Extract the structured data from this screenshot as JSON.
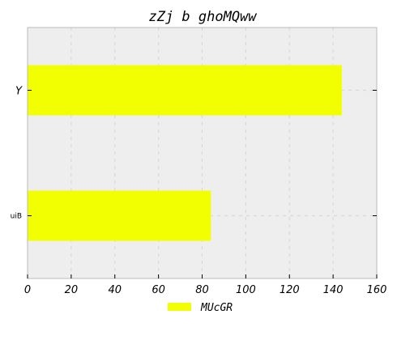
{
  "chart_data": {
    "type": "bar",
    "orientation": "horizontal",
    "title": "zZj b ghoMQww",
    "xlabel": "",
    "ylabel": "",
    "categories": [
      "Y",
      "uiB"
    ],
    "series": [
      {
        "name": "MUcGR",
        "values": [
          144,
          84
        ],
        "color": "#f2ff00"
      }
    ],
    "xlim": [
      0,
      160
    ],
    "xticks": [
      0,
      20,
      40,
      60,
      80,
      100,
      120,
      140,
      160
    ],
    "grid": true,
    "legend": "bottom-center",
    "colors": {
      "plot_background": "#eeeeee",
      "grid": "#d8d8d8",
      "frame": "#bbbbbb"
    }
  }
}
